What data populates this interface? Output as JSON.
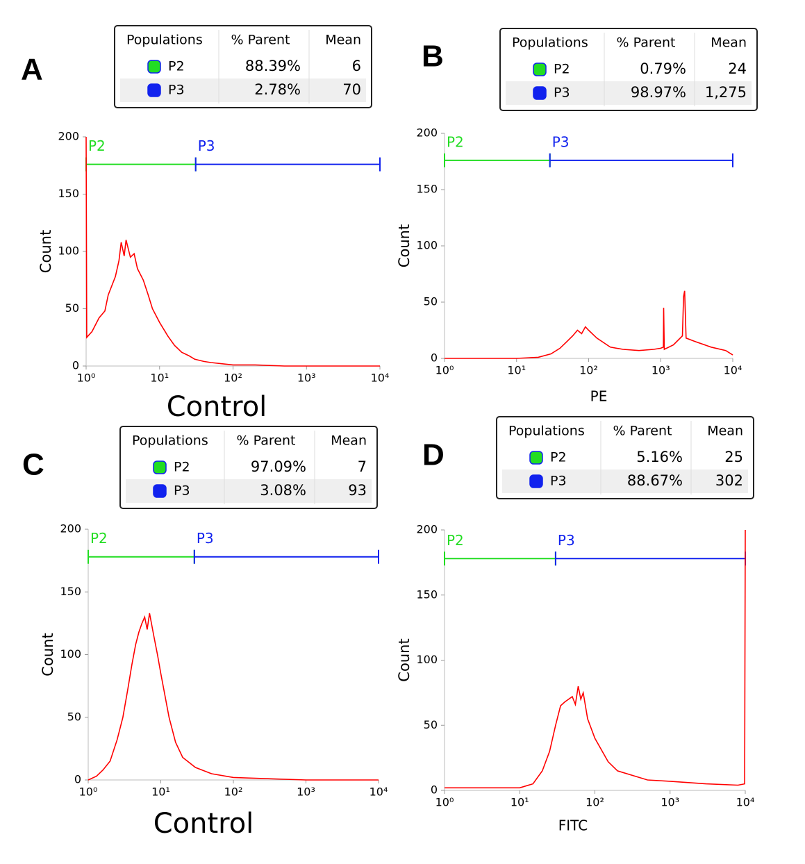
{
  "chart_data": [
    {
      "type": "line",
      "panel": "A",
      "xlabel": "Control",
      "ylabel": "Count",
      "color": "#ff0000",
      "xscale": "log",
      "xlim": [
        1,
        10000
      ],
      "ylim": [
        0,
        200
      ],
      "xticks": [
        {
          "value": 1,
          "label": "10⁰"
        },
        {
          "value": 10,
          "label": "10¹"
        },
        {
          "value": 100,
          "label": "10²"
        },
        {
          "value": 1000,
          "label": "10³"
        },
        {
          "value": 10000,
          "label": "10⁴"
        }
      ],
      "yticks": [
        0,
        50,
        100,
        150,
        200
      ],
      "table": {
        "header": [
          "Populations",
          "% Parent",
          "Mean"
        ],
        "rows": [
          {
            "name": "P2",
            "color": "#22dd22",
            "parent": "88.39%",
            "mean": "6"
          },
          {
            "name": "P3",
            "color": "#1122ee",
            "parent": "2.78%",
            "mean": "70"
          }
        ]
      },
      "gates": [
        {
          "name": "P2",
          "color": "#22dd22",
          "range": [
            1,
            31
          ],
          "y": 176
        },
        {
          "name": "P3",
          "color": "#1122ee",
          "range": [
            31,
            10000
          ],
          "y": 176
        }
      ],
      "x": [
        1,
        1.02,
        1.2,
        1.5,
        1.8,
        2,
        2.5,
        2.8,
        3,
        3.3,
        3.5,
        4,
        4.5,
        5,
        6,
        7,
        8,
        10,
        13,
        16,
        20,
        25,
        30,
        40,
        50,
        70,
        100,
        200,
        500,
        1000,
        10000
      ],
      "values": [
        200,
        25,
        30,
        42,
        48,
        62,
        78,
        92,
        108,
        96,
        110,
        95,
        98,
        85,
        75,
        62,
        50,
        38,
        26,
        18,
        12,
        9,
        6,
        4,
        3,
        2,
        1,
        1,
        0,
        0,
        0
      ]
    },
    {
      "type": "line",
      "panel": "B",
      "xlabel": "PE",
      "ylabel": "Count",
      "color": "#ff0000",
      "xscale": "log",
      "xlim": [
        1,
        10000
      ],
      "ylim": [
        0,
        200
      ],
      "xticks": [
        {
          "value": 1,
          "label": "10⁰"
        },
        {
          "value": 10,
          "label": "10¹"
        },
        {
          "value": 100,
          "label": "10²"
        },
        {
          "value": 1000,
          "label": "10³"
        },
        {
          "value": 10000,
          "label": "10⁴"
        }
      ],
      "yticks": [
        0,
        50,
        100,
        150,
        200
      ],
      "table": {
        "header": [
          "Populations",
          "% Parent",
          "Mean"
        ],
        "rows": [
          {
            "name": "P2",
            "color": "#22dd22",
            "parent": "0.79%",
            "mean": "24"
          },
          {
            "name": "P3",
            "color": "#1122ee",
            "parent": "98.97%",
            "mean": "1,275"
          }
        ]
      },
      "gates": [
        {
          "name": "P2",
          "color": "#22dd22",
          "range": [
            1,
            29
          ],
          "y": 176
        },
        {
          "name": "P3",
          "color": "#1122ee",
          "range": [
            29,
            10000
          ],
          "y": 176
        }
      ],
      "x": [
        1,
        10,
        20,
        30,
        40,
        50,
        60,
        70,
        80,
        90,
        100,
        130,
        200,
        300,
        500,
        800,
        1000,
        1090,
        1100,
        1120,
        1500,
        2000,
        2080,
        2150,
        2250,
        3000,
        5000,
        8000,
        10000
      ],
      "values": [
        0,
        0,
        1,
        4,
        9,
        15,
        20,
        25,
        22,
        28,
        25,
        18,
        10,
        8,
        7,
        8,
        9,
        10,
        45,
        8,
        12,
        20,
        55,
        60,
        18,
        15,
        10,
        7,
        3
      ]
    },
    {
      "type": "line",
      "panel": "C",
      "xlabel": "Control",
      "ylabel": "Count",
      "color": "#ff0000",
      "xscale": "log",
      "xlim": [
        1,
        10000
      ],
      "ylim": [
        0,
        200
      ],
      "xticks": [
        {
          "value": 1,
          "label": "10⁰"
        },
        {
          "value": 10,
          "label": "10¹"
        },
        {
          "value": 100,
          "label": "10²"
        },
        {
          "value": 1000,
          "label": "10³"
        },
        {
          "value": 10000,
          "label": "10⁴"
        }
      ],
      "yticks": [
        0,
        50,
        100,
        150,
        200
      ],
      "table": {
        "header": [
          "Populations",
          "% Parent",
          "Mean"
        ],
        "rows": [
          {
            "name": "P2",
            "color": "#22dd22",
            "parent": "97.09%",
            "mean": "7"
          },
          {
            "name": "P3",
            "color": "#1122ee",
            "parent": "3.08%",
            "mean": "93"
          }
        ]
      },
      "gates": [
        {
          "name": "P2",
          "color": "#22dd22",
          "range": [
            1,
            29
          ],
          "y": 178
        },
        {
          "name": "P3",
          "color": "#1122ee",
          "range": [
            29,
            10000
          ],
          "y": 178
        }
      ],
      "x": [
        1,
        1.3,
        1.6,
        2,
        2.5,
        3,
        3.5,
        4,
        4.5,
        5,
        5.5,
        6,
        6.5,
        7,
        8,
        9,
        10,
        13,
        16,
        20,
        30,
        50,
        100,
        300,
        1000,
        10000
      ],
      "values": [
        0,
        3,
        8,
        15,
        32,
        50,
        72,
        92,
        108,
        118,
        125,
        130,
        120,
        133,
        115,
        100,
        85,
        50,
        30,
        18,
        10,
        5,
        2,
        1,
        0,
        0
      ]
    },
    {
      "type": "line",
      "panel": "D",
      "xlabel": "FITC",
      "ylabel": "Count",
      "color": "#ff0000",
      "xscale": "log",
      "xlim": [
        1,
        10000
      ],
      "ylim": [
        0,
        200
      ],
      "xticks": [
        {
          "value": 1,
          "label": "10⁰"
        },
        {
          "value": 10,
          "label": "10¹"
        },
        {
          "value": 100,
          "label": "10²"
        },
        {
          "value": 1000,
          "label": "10³"
        },
        {
          "value": 10000,
          "label": "10⁴"
        }
      ],
      "yticks": [
        0,
        50,
        100,
        150,
        200
      ],
      "table": {
        "header": [
          "Populations",
          "% Parent",
          "Mean"
        ],
        "rows": [
          {
            "name": "P2",
            "color": "#22dd22",
            "parent": "5.16%",
            "mean": "25"
          },
          {
            "name": "P3",
            "color": "#1122ee",
            "parent": "88.67%",
            "mean": "302"
          }
        ]
      },
      "gates": [
        {
          "name": "P2",
          "color": "#22dd22",
          "range": [
            1,
            30
          ],
          "y": 178
        },
        {
          "name": "P3",
          "color": "#1122ee",
          "range": [
            30,
            10000
          ],
          "y": 178
        }
      ],
      "x": [
        1,
        10,
        15,
        20,
        25,
        30,
        35,
        40,
        50,
        55,
        60,
        65,
        70,
        80,
        100,
        150,
        200,
        500,
        1000,
        3000,
        8000,
        9800,
        10000
      ],
      "values": [
        2,
        2,
        5,
        15,
        30,
        50,
        65,
        68,
        72,
        66,
        80,
        70,
        75,
        55,
        40,
        22,
        15,
        8,
        7,
        5,
        4,
        5,
        200
      ]
    }
  ]
}
